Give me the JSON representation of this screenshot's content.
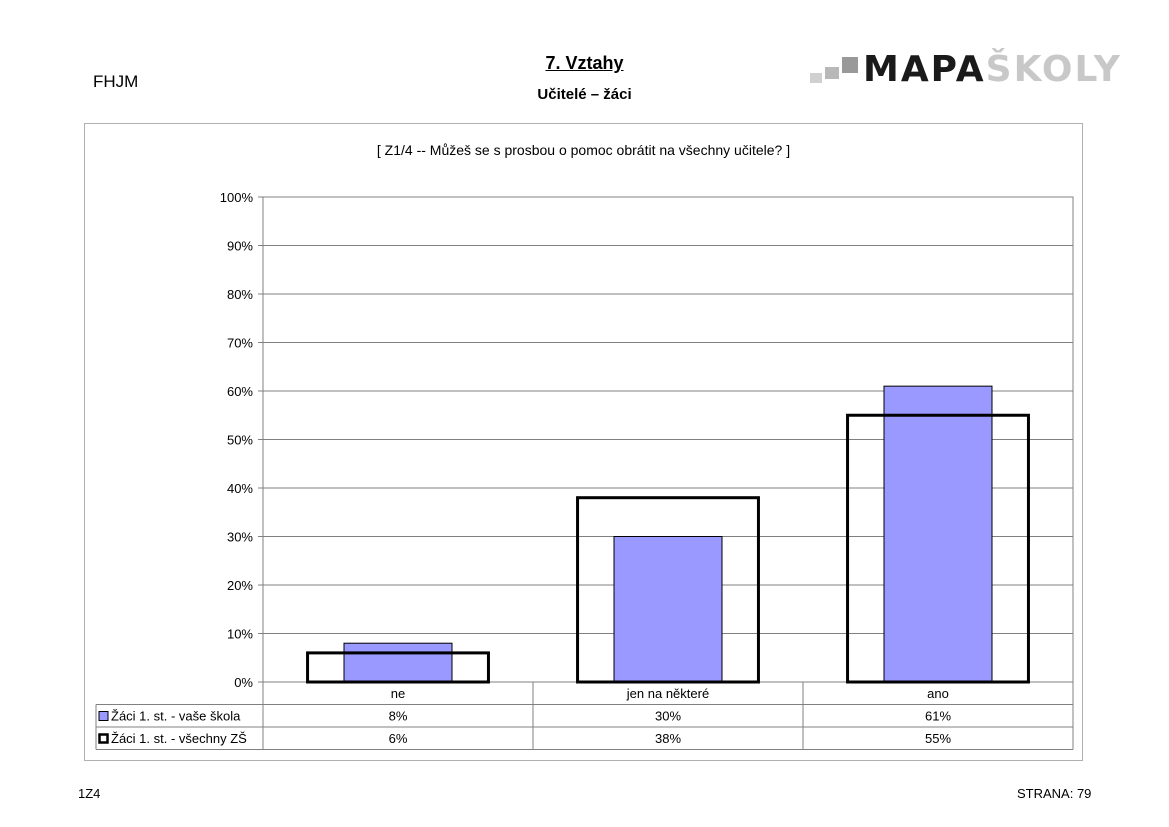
{
  "header": {
    "school_code": "FHJM",
    "title": "7. Vztahy",
    "subtitle": "Učitelé – žáci",
    "logo_part1": "MAPA",
    "logo_part2": "ŠKOLY"
  },
  "footer": {
    "left": "1Z4",
    "right": "STRANA: 79"
  },
  "colors": {
    "series1_fill": "#9999ff",
    "series2_stroke": "#000000",
    "grid": "#808080"
  },
  "chart_data": {
    "type": "bar",
    "title": "[ Z1/4 -- Můžeš se s prosbou o pomoc obrátit na všechny učitele? ]",
    "categories": [
      "ne",
      "jen na některé",
      "ano"
    ],
    "ylim": [
      0,
      100
    ],
    "yticks": [
      "0%",
      "10%",
      "20%",
      "30%",
      "40%",
      "50%",
      "60%",
      "70%",
      "80%",
      "90%",
      "100%"
    ],
    "grid": true,
    "legend": "data-table",
    "series": [
      {
        "name": "Žáci 1. st. - vaše škola",
        "values": [
          8,
          30,
          61
        ],
        "labels": [
          "8%",
          "30%",
          "61%"
        ],
        "style": "filled"
      },
      {
        "name": "Žáci 1. st. - všechny ZŠ",
        "values": [
          6,
          38,
          55
        ],
        "labels": [
          "6%",
          "38%",
          "55%"
        ],
        "style": "outline"
      }
    ]
  }
}
